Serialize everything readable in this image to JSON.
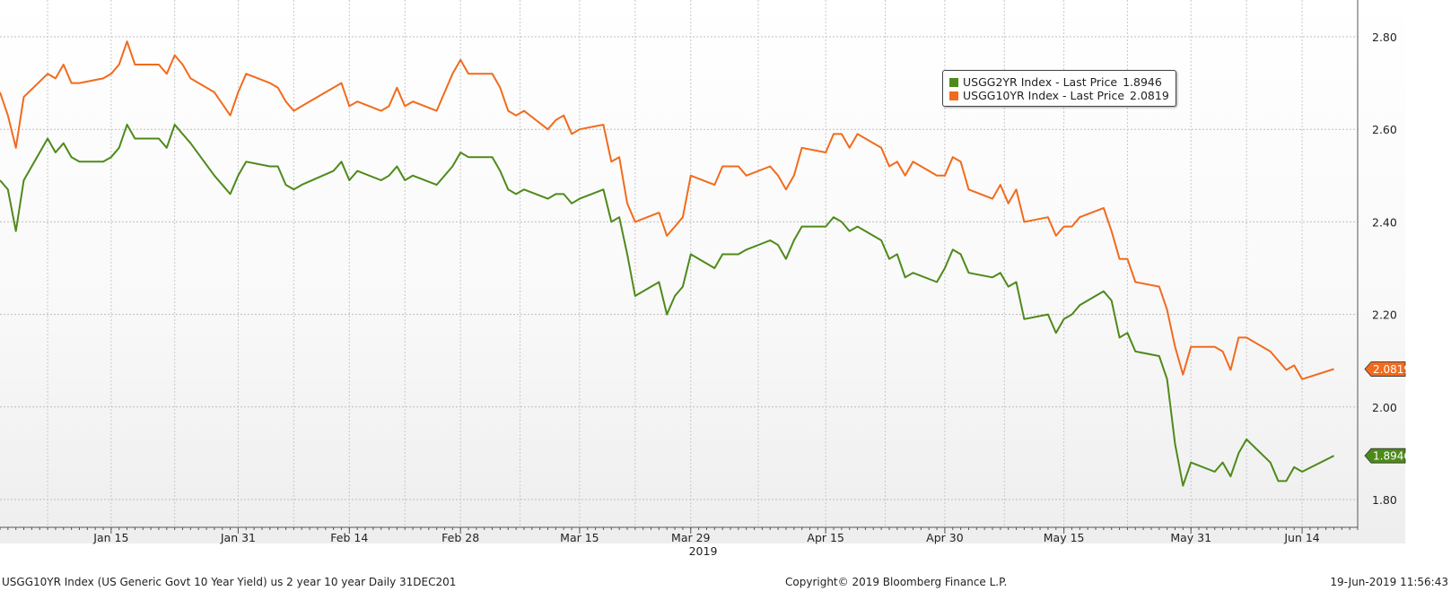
{
  "chart_data": {
    "type": "line",
    "title": "",
    "ylim": [
      1.75,
      2.85
    ],
    "y_ticks": [
      1.8,
      2.0,
      2.2,
      2.4,
      2.6,
      2.8
    ],
    "y_tick_labels": [
      "1.80",
      "2.00",
      "2.20",
      "2.40",
      "2.60",
      "2.80"
    ],
    "x_range": [
      "2019-01-01",
      "2019-06-21"
    ],
    "x_ticks": [
      {
        "date": "2019-01-15",
        "label": "Jan 15"
      },
      {
        "date": "2019-01-31",
        "label": "Jan 31"
      },
      {
        "date": "2019-02-14",
        "label": "Feb 14"
      },
      {
        "date": "2019-02-28",
        "label": "Feb 28"
      },
      {
        "date": "2019-03-15",
        "label": "Mar 15"
      },
      {
        "date": "2019-03-29",
        "label": "Mar 29"
      },
      {
        "date": "2019-04-15",
        "label": "Apr 15"
      },
      {
        "date": "2019-04-30",
        "label": "Apr 30"
      },
      {
        "date": "2019-05-15",
        "label": "May 15"
      },
      {
        "date": "2019-05-31",
        "label": "May 31"
      },
      {
        "date": "2019-06-14",
        "label": "Jun 14"
      }
    ],
    "x_year_label": "2019",
    "grid": true,
    "legend_position": "top-right",
    "series": [
      {
        "name": "USGG2YR Index - Last Price",
        "last_value": "1.8946",
        "color": "#4e8a1a",
        "points": [
          [
            "2019-01-01",
            2.49
          ],
          [
            "2019-01-02",
            2.47
          ],
          [
            "2019-01-03",
            2.38
          ],
          [
            "2019-01-04",
            2.49
          ],
          [
            "2019-01-07",
            2.58
          ],
          [
            "2019-01-08",
            2.55
          ],
          [
            "2019-01-09",
            2.57
          ],
          [
            "2019-01-10",
            2.54
          ],
          [
            "2019-01-11",
            2.53
          ],
          [
            "2019-01-14",
            2.53
          ],
          [
            "2019-01-15",
            2.54
          ],
          [
            "2019-01-16",
            2.56
          ],
          [
            "2019-01-17",
            2.61
          ],
          [
            "2019-01-18",
            2.58
          ],
          [
            "2019-01-21",
            2.58
          ],
          [
            "2019-01-22",
            2.56
          ],
          [
            "2019-01-23",
            2.61
          ],
          [
            "2019-01-24",
            2.59
          ],
          [
            "2019-01-25",
            2.57
          ],
          [
            "2019-01-28",
            2.5
          ],
          [
            "2019-01-30",
            2.46
          ],
          [
            "2019-01-31",
            2.5
          ],
          [
            "2019-02-01",
            2.53
          ],
          [
            "2019-02-04",
            2.52
          ],
          [
            "2019-02-05",
            2.52
          ],
          [
            "2019-02-06",
            2.48
          ],
          [
            "2019-02-07",
            2.47
          ],
          [
            "2019-02-08",
            2.48
          ],
          [
            "2019-02-12",
            2.51
          ],
          [
            "2019-02-13",
            2.53
          ],
          [
            "2019-02-14",
            2.49
          ],
          [
            "2019-02-15",
            2.51
          ],
          [
            "2019-02-18",
            2.49
          ],
          [
            "2019-02-19",
            2.5
          ],
          [
            "2019-02-20",
            2.52
          ],
          [
            "2019-02-21",
            2.49
          ],
          [
            "2019-02-22",
            2.5
          ],
          [
            "2019-02-25",
            2.48
          ],
          [
            "2019-02-27",
            2.52
          ],
          [
            "2019-02-28",
            2.55
          ],
          [
            "2019-03-01",
            2.54
          ],
          [
            "2019-03-04",
            2.54
          ],
          [
            "2019-03-05",
            2.51
          ],
          [
            "2019-03-06",
            2.47
          ],
          [
            "2019-03-07",
            2.46
          ],
          [
            "2019-03-08",
            2.47
          ],
          [
            "2019-03-11",
            2.45
          ],
          [
            "2019-03-12",
            2.46
          ],
          [
            "2019-03-13",
            2.46
          ],
          [
            "2019-03-14",
            2.44
          ],
          [
            "2019-03-15",
            2.45
          ],
          [
            "2019-03-18",
            2.47
          ],
          [
            "2019-03-19",
            2.4
          ],
          [
            "2019-03-20",
            2.41
          ],
          [
            "2019-03-21",
            2.33
          ],
          [
            "2019-03-22",
            2.24
          ],
          [
            "2019-03-25",
            2.27
          ],
          [
            "2019-03-26",
            2.2
          ],
          [
            "2019-03-27",
            2.24
          ],
          [
            "2019-03-28",
            2.26
          ],
          [
            "2019-03-29",
            2.33
          ],
          [
            "2019-04-01",
            2.3
          ],
          [
            "2019-04-02",
            2.33
          ],
          [
            "2019-04-04",
            2.33
          ],
          [
            "2019-04-05",
            2.34
          ],
          [
            "2019-04-08",
            2.36
          ],
          [
            "2019-04-09",
            2.35
          ],
          [
            "2019-04-10",
            2.32
          ],
          [
            "2019-04-11",
            2.36
          ],
          [
            "2019-04-12",
            2.39
          ],
          [
            "2019-04-15",
            2.39
          ],
          [
            "2019-04-16",
            2.41
          ],
          [
            "2019-04-17",
            2.4
          ],
          [
            "2019-04-18",
            2.38
          ],
          [
            "2019-04-19",
            2.39
          ],
          [
            "2019-04-22",
            2.36
          ],
          [
            "2019-04-23",
            2.32
          ],
          [
            "2019-04-24",
            2.33
          ],
          [
            "2019-04-25",
            2.28
          ],
          [
            "2019-04-26",
            2.29
          ],
          [
            "2019-04-29",
            2.27
          ],
          [
            "2019-04-30",
            2.3
          ],
          [
            "2019-05-01",
            2.34
          ],
          [
            "2019-05-02",
            2.33
          ],
          [
            "2019-05-03",
            2.29
          ],
          [
            "2019-05-06",
            2.28
          ],
          [
            "2019-05-07",
            2.29
          ],
          [
            "2019-05-08",
            2.26
          ],
          [
            "2019-05-09",
            2.27
          ],
          [
            "2019-05-10",
            2.19
          ],
          [
            "2019-05-13",
            2.2
          ],
          [
            "2019-05-14",
            2.16
          ],
          [
            "2019-05-15",
            2.19
          ],
          [
            "2019-05-16",
            2.2
          ],
          [
            "2019-05-17",
            2.22
          ],
          [
            "2019-05-20",
            2.25
          ],
          [
            "2019-05-21",
            2.23
          ],
          [
            "2019-05-22",
            2.15
          ],
          [
            "2019-05-23",
            2.16
          ],
          [
            "2019-05-24",
            2.12
          ],
          [
            "2019-05-27",
            2.11
          ],
          [
            "2019-05-28",
            2.06
          ],
          [
            "2019-05-29",
            1.92
          ],
          [
            "2019-05-30",
            1.83
          ],
          [
            "2019-05-31",
            1.88
          ],
          [
            "2019-06-03",
            1.86
          ],
          [
            "2019-06-04",
            1.88
          ],
          [
            "2019-06-05",
            1.85
          ],
          [
            "2019-06-06",
            1.9
          ],
          [
            "2019-06-07",
            1.93
          ],
          [
            "2019-06-10",
            1.88
          ],
          [
            "2019-06-11",
            1.84
          ],
          [
            "2019-06-12",
            1.84
          ],
          [
            "2019-06-13",
            1.87
          ],
          [
            "2019-06-14",
            1.86
          ],
          [
            "2019-06-18",
            1.8946
          ]
        ]
      },
      {
        "name": "USGG10YR Index - Last Price",
        "last_value": "2.0819",
        "color": "#f26b1d",
        "points": [
          [
            "2019-01-01",
            2.68
          ],
          [
            "2019-01-02",
            2.63
          ],
          [
            "2019-01-03",
            2.56
          ],
          [
            "2019-01-04",
            2.67
          ],
          [
            "2019-01-07",
            2.72
          ],
          [
            "2019-01-08",
            2.71
          ],
          [
            "2019-01-09",
            2.74
          ],
          [
            "2019-01-10",
            2.7
          ],
          [
            "2019-01-11",
            2.7
          ],
          [
            "2019-01-14",
            2.71
          ],
          [
            "2019-01-15",
            2.72
          ],
          [
            "2019-01-16",
            2.74
          ],
          [
            "2019-01-17",
            2.79
          ],
          [
            "2019-01-18",
            2.74
          ],
          [
            "2019-01-21",
            2.74
          ],
          [
            "2019-01-22",
            2.72
          ],
          [
            "2019-01-23",
            2.76
          ],
          [
            "2019-01-24",
            2.74
          ],
          [
            "2019-01-25",
            2.71
          ],
          [
            "2019-01-28",
            2.68
          ],
          [
            "2019-01-30",
            2.63
          ],
          [
            "2019-01-31",
            2.68
          ],
          [
            "2019-02-01",
            2.72
          ],
          [
            "2019-02-04",
            2.7
          ],
          [
            "2019-02-05",
            2.69
          ],
          [
            "2019-02-06",
            2.66
          ],
          [
            "2019-02-07",
            2.64
          ],
          [
            "2019-02-08",
            2.65
          ],
          [
            "2019-02-12",
            2.69
          ],
          [
            "2019-02-13",
            2.7
          ],
          [
            "2019-02-14",
            2.65
          ],
          [
            "2019-02-15",
            2.66
          ],
          [
            "2019-02-18",
            2.64
          ],
          [
            "2019-02-19",
            2.65
          ],
          [
            "2019-02-20",
            2.69
          ],
          [
            "2019-02-21",
            2.65
          ],
          [
            "2019-02-22",
            2.66
          ],
          [
            "2019-02-25",
            2.64
          ],
          [
            "2019-02-27",
            2.72
          ],
          [
            "2019-02-28",
            2.75
          ],
          [
            "2019-03-01",
            2.72
          ],
          [
            "2019-03-04",
            2.72
          ],
          [
            "2019-03-05",
            2.69
          ],
          [
            "2019-03-06",
            2.64
          ],
          [
            "2019-03-07",
            2.63
          ],
          [
            "2019-03-08",
            2.64
          ],
          [
            "2019-03-11",
            2.6
          ],
          [
            "2019-03-12",
            2.62
          ],
          [
            "2019-03-13",
            2.63
          ],
          [
            "2019-03-14",
            2.59
          ],
          [
            "2019-03-15",
            2.6
          ],
          [
            "2019-03-18",
            2.61
          ],
          [
            "2019-03-19",
            2.53
          ],
          [
            "2019-03-20",
            2.54
          ],
          [
            "2019-03-21",
            2.44
          ],
          [
            "2019-03-22",
            2.4
          ],
          [
            "2019-03-25",
            2.42
          ],
          [
            "2019-03-26",
            2.37
          ],
          [
            "2019-03-27",
            2.39
          ],
          [
            "2019-03-28",
            2.41
          ],
          [
            "2019-03-29",
            2.5
          ],
          [
            "2019-04-01",
            2.48
          ],
          [
            "2019-04-02",
            2.52
          ],
          [
            "2019-04-04",
            2.52
          ],
          [
            "2019-04-05",
            2.5
          ],
          [
            "2019-04-08",
            2.52
          ],
          [
            "2019-04-09",
            2.5
          ],
          [
            "2019-04-10",
            2.47
          ],
          [
            "2019-04-11",
            2.5
          ],
          [
            "2019-04-12",
            2.56
          ],
          [
            "2019-04-15",
            2.55
          ],
          [
            "2019-04-16",
            2.59
          ],
          [
            "2019-04-17",
            2.59
          ],
          [
            "2019-04-18",
            2.56
          ],
          [
            "2019-04-19",
            2.59
          ],
          [
            "2019-04-22",
            2.56
          ],
          [
            "2019-04-23",
            2.52
          ],
          [
            "2019-04-24",
            2.53
          ],
          [
            "2019-04-25",
            2.5
          ],
          [
            "2019-04-26",
            2.53
          ],
          [
            "2019-04-29",
            2.5
          ],
          [
            "2019-04-30",
            2.5
          ],
          [
            "2019-05-01",
            2.54
          ],
          [
            "2019-05-02",
            2.53
          ],
          [
            "2019-05-03",
            2.47
          ],
          [
            "2019-05-06",
            2.45
          ],
          [
            "2019-05-07",
            2.48
          ],
          [
            "2019-05-08",
            2.44
          ],
          [
            "2019-05-09",
            2.47
          ],
          [
            "2019-05-10",
            2.4
          ],
          [
            "2019-05-13",
            2.41
          ],
          [
            "2019-05-14",
            2.37
          ],
          [
            "2019-05-15",
            2.39
          ],
          [
            "2019-05-16",
            2.39
          ],
          [
            "2019-05-17",
            2.41
          ],
          [
            "2019-05-20",
            2.43
          ],
          [
            "2019-05-21",
            2.38
          ],
          [
            "2019-05-22",
            2.32
          ],
          [
            "2019-05-23",
            2.32
          ],
          [
            "2019-05-24",
            2.27
          ],
          [
            "2019-05-27",
            2.26
          ],
          [
            "2019-05-28",
            2.21
          ],
          [
            "2019-05-29",
            2.13
          ],
          [
            "2019-05-30",
            2.07
          ],
          [
            "2019-05-31",
            2.13
          ],
          [
            "2019-06-03",
            2.13
          ],
          [
            "2019-06-04",
            2.12
          ],
          [
            "2019-06-05",
            2.08
          ],
          [
            "2019-06-06",
            2.15
          ],
          [
            "2019-06-07",
            2.15
          ],
          [
            "2019-06-10",
            2.12
          ],
          [
            "2019-06-11",
            2.1
          ],
          [
            "2019-06-12",
            2.08
          ],
          [
            "2019-06-13",
            2.09
          ],
          [
            "2019-06-14",
            2.06
          ],
          [
            "2019-06-18",
            2.0819
          ]
        ]
      }
    ]
  },
  "footer": {
    "left": "USGG10YR Index (US Generic Govt 10 Year Yield) us 2 year 10 year  Daily 31DEC201",
    "center": "Copyright© 2019 Bloomberg Finance L.P.",
    "right": "19-Jun-2019 11:56:43"
  }
}
